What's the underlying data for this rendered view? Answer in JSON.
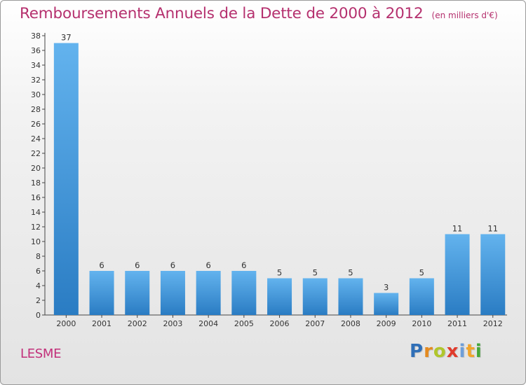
{
  "header": {
    "title": "Remboursements Annuels de la Dette de 2000 à 2012",
    "unit": "(en milliers d'€)"
  },
  "footer": {
    "commune": "LESME",
    "logo_text": "Proxiti"
  },
  "colors": {
    "title": "#b5306e",
    "bar_top": "#63b3ee",
    "bar_bottom": "#2a7cc3",
    "logo_letters": [
      "#2f6fb7",
      "#e48a1f",
      "#b0c62c",
      "#e03b2c",
      "#6e9ed8",
      "#f1a52b",
      "#45a83a"
    ]
  },
  "chart_data": {
    "type": "bar",
    "categories": [
      "2000",
      "2001",
      "2002",
      "2003",
      "2004",
      "2005",
      "2006",
      "2007",
      "2008",
      "2009",
      "2010",
      "2011",
      "2012"
    ],
    "values": [
      37,
      6,
      6,
      6,
      6,
      6,
      5,
      5,
      5,
      3,
      5,
      11,
      11
    ],
    "ylim": [
      0,
      38
    ],
    "yticks": [
      0,
      2,
      4,
      6,
      8,
      10,
      12,
      14,
      16,
      18,
      20,
      22,
      24,
      26,
      28,
      30,
      32,
      34,
      36,
      38
    ],
    "grid": false,
    "legend": "none"
  }
}
